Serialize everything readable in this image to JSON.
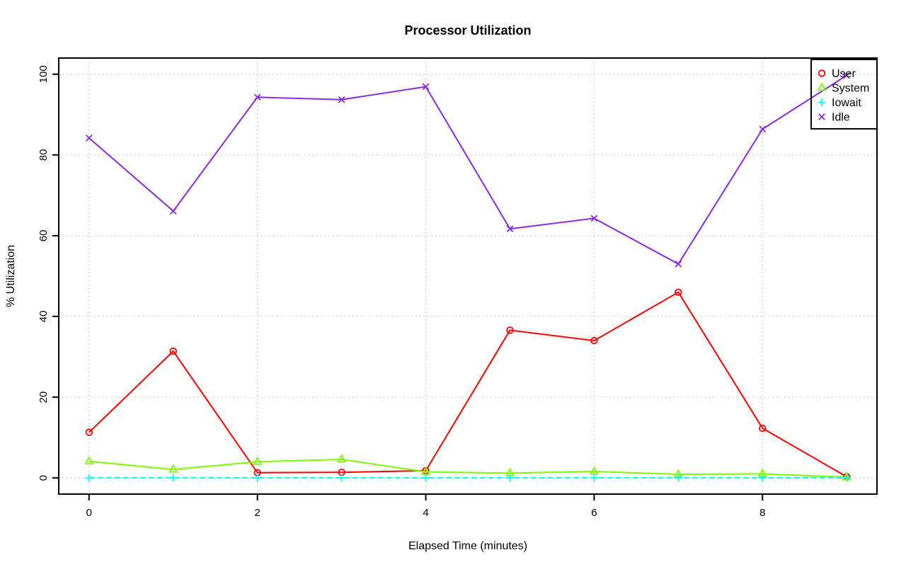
{
  "figure": {
    "title": "Processor Utilization"
  },
  "chart_data": {
    "type": "line",
    "title": "Processor Utilization",
    "xlabel": "Elapsed Time (minutes)",
    "ylabel": "% Utilization",
    "x": [
      0,
      1,
      2,
      3,
      4,
      5,
      6,
      7,
      8,
      9
    ],
    "xticks": [
      0,
      2,
      4,
      6,
      8
    ],
    "yticks": [
      0,
      20,
      40,
      60,
      80,
      100
    ],
    "xlim": [
      0,
      9
    ],
    "ylim": [
      0,
      100
    ],
    "grid": true,
    "grid_color": "#c8c8c8",
    "axis_color": "#000000",
    "legend_position": "top-right",
    "legend_entries": [
      "User",
      "System",
      "Iowait",
      "Idle"
    ],
    "series": [
      {
        "name": "User",
        "color": "#ff0000",
        "marker": "circle",
        "marker_icon": "open-circle-marker-icon",
        "line_style": "solid",
        "values": [
          11.3,
          31.4,
          1.3,
          1.4,
          1.8,
          36.6,
          34.0,
          46.0,
          12.3,
          0.3
        ]
      },
      {
        "name": "System",
        "color": "#7cfc00",
        "marker": "triangle",
        "marker_icon": "open-triangle-marker-icon",
        "line_style": "solid",
        "values": [
          4.1,
          2.1,
          4.0,
          4.6,
          1.5,
          1.2,
          1.6,
          0.9,
          1.0,
          0.2
        ]
      },
      {
        "name": "Iowait",
        "color": "#00ffff",
        "marker": "plus",
        "marker_icon": "plus-marker-icon",
        "line_style": "dashed",
        "values": [
          0,
          0,
          0,
          0,
          0,
          0,
          0,
          0,
          0,
          0
        ]
      },
      {
        "name": "Idle",
        "color": "#8a2be2",
        "marker": "x",
        "marker_icon": "x-marker-icon",
        "line_style": "solid",
        "values": [
          84.2,
          66.1,
          94.3,
          93.7,
          96.9,
          61.7,
          64.3,
          53.0,
          86.4,
          99.7
        ]
      }
    ]
  }
}
